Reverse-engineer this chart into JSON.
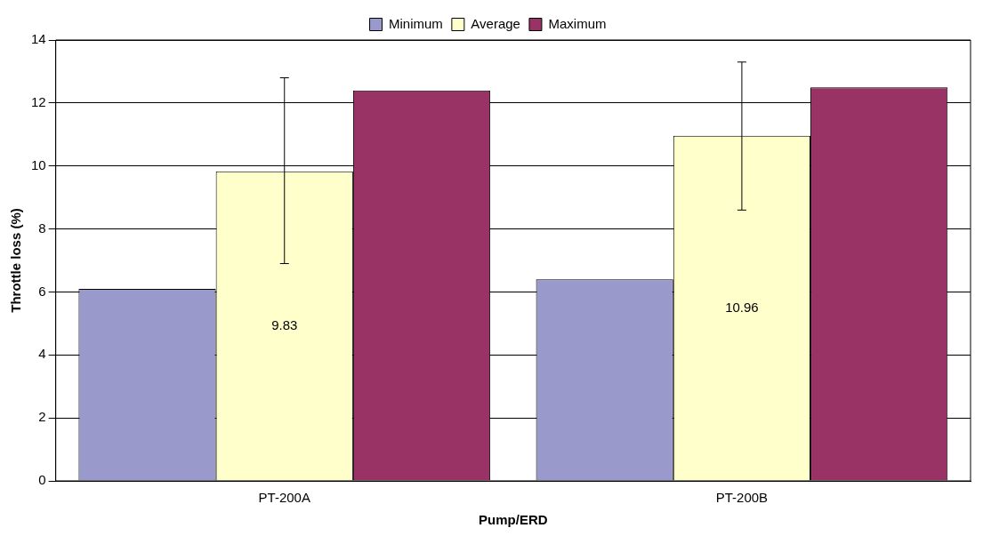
{
  "chart_data": {
    "type": "bar",
    "xlabel": "Pump/ERD",
    "ylabel": "Throttle loss (%)",
    "categories": [
      "PT-200A",
      "PT-200B"
    ],
    "series": [
      {
        "name": "Minimum",
        "color": "#9999cc",
        "values": [
          6.1,
          6.4
        ]
      },
      {
        "name": "Average",
        "color": "#ffffcc",
        "values": [
          9.83,
          10.96
        ],
        "value_labels": [
          "9.83",
          "10.96"
        ],
        "errors": [
          [
            6.9,
            12.8
          ],
          [
            8.6,
            13.3
          ]
        ]
      },
      {
        "name": "Maximum",
        "color": "#993366",
        "values": [
          12.4,
          12.5
        ]
      }
    ],
    "ylim": [
      0,
      14
    ],
    "yticks": [
      0,
      2,
      4,
      6,
      8,
      10,
      12,
      14
    ],
    "grid": "y",
    "legend": "top"
  }
}
